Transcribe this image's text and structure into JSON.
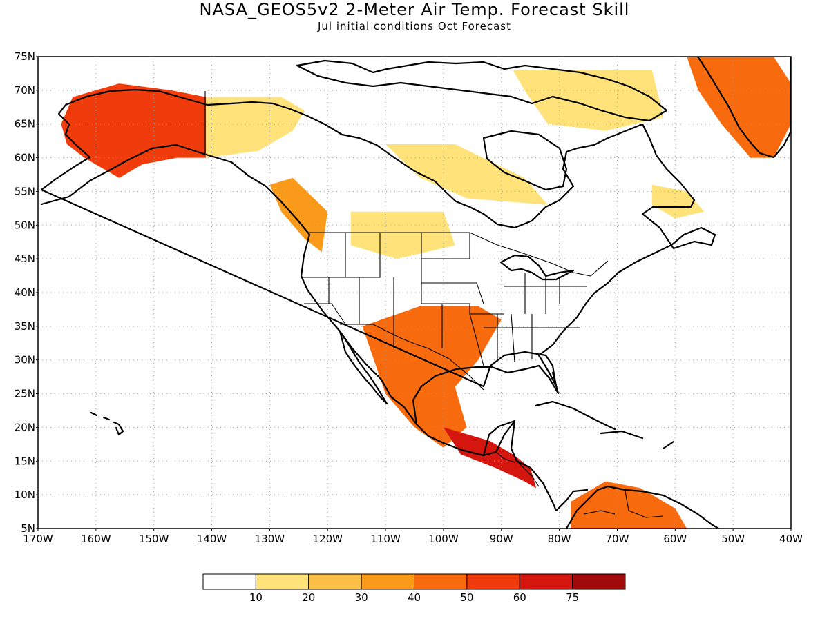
{
  "title": "NASA_GEOS5v2 2-Meter Air Temp. Forecast Skill",
  "subtitle": "Jul initial conditions  Oct Forecast",
  "map": {
    "lat_range": [
      5,
      75
    ],
    "lon_range": [
      -170,
      -40
    ],
    "lat_ticks": [
      "5N",
      "10N",
      "15N",
      "20N",
      "25N",
      "30N",
      "35N",
      "40N",
      "45N",
      "50N",
      "55N",
      "60N",
      "65N",
      "70N",
      "75N"
    ],
    "lon_ticks": [
      "170W",
      "160W",
      "150W",
      "140W",
      "130W",
      "120W",
      "110W",
      "100W",
      "90W",
      "80W",
      "70W",
      "60W",
      "50W",
      "40W"
    ],
    "gridlines": "dotted"
  },
  "colorbar": {
    "labels": [
      "10",
      "20",
      "30",
      "40",
      "50",
      "60",
      "75"
    ],
    "colors": [
      "#ffffff",
      "#ffe27a",
      "#fcbf47",
      "#fa9a1a",
      "#f76a0e",
      "#f03c0c",
      "#d5160e",
      "#a00a0a"
    ]
  },
  "regions": [
    {
      "name": "alaska",
      "level": 5,
      "coords": [
        [
          -164,
          69
        ],
        [
          -156,
          71
        ],
        [
          -147,
          70
        ],
        [
          -141,
          69
        ],
        [
          -141,
          60
        ],
        [
          -146,
          60
        ],
        [
          -152,
          59
        ],
        [
          -156,
          57
        ],
        [
          -162,
          60
        ],
        [
          -165,
          62
        ],
        [
          -166,
          65
        ]
      ]
    },
    {
      "name": "yukon",
      "level": 1,
      "coords": [
        [
          -141,
          69
        ],
        [
          -128,
          69
        ],
        [
          -124,
          67
        ],
        [
          -126,
          64
        ],
        [
          -132,
          61
        ],
        [
          -141,
          60
        ]
      ]
    },
    {
      "name": "greenland",
      "level": 4,
      "coords": [
        [
          -58,
          75
        ],
        [
          -43,
          75
        ],
        [
          -40,
          71
        ],
        [
          -40,
          65
        ],
        [
          -43,
          60
        ],
        [
          -47,
          60
        ],
        [
          -52,
          65
        ],
        [
          -56,
          70
        ]
      ]
    },
    {
      "name": "canada-arctic",
      "level": 1,
      "coords": [
        [
          -88,
          73
        ],
        [
          -64,
          73
        ],
        [
          -62,
          66
        ],
        [
          -72,
          64
        ],
        [
          -82,
          65
        ],
        [
          -86,
          70
        ]
      ]
    },
    {
      "name": "hudson-west",
      "level": 1,
      "coords": [
        [
          -110,
          62
        ],
        [
          -98,
          62
        ],
        [
          -86,
          57
        ],
        [
          -82,
          53
        ],
        [
          -96,
          54
        ],
        [
          -104,
          57
        ]
      ]
    },
    {
      "name": "bc-coast",
      "level": 3,
      "coords": [
        [
          -130,
          56
        ],
        [
          -126,
          57
        ],
        [
          -120,
          52
        ],
        [
          -121,
          46
        ],
        [
          -124,
          48
        ],
        [
          -128,
          52
        ]
      ]
    },
    {
      "name": "plains-north",
      "level": 1,
      "coords": [
        [
          -116,
          52
        ],
        [
          -100,
          52
        ],
        [
          -98,
          47
        ],
        [
          -108,
          45
        ],
        [
          -116,
          47
        ]
      ]
    },
    {
      "name": "texas-mexico",
      "level": 4,
      "coords": [
        [
          -114,
          35
        ],
        [
          -104,
          38
        ],
        [
          -94,
          38
        ],
        [
          -90,
          36
        ],
        [
          -94,
          30
        ],
        [
          -98,
          26
        ],
        [
          -96,
          20
        ],
        [
          -100,
          17
        ],
        [
          -105,
          20
        ],
        [
          -110,
          25
        ],
        [
          -112,
          30
        ]
      ]
    },
    {
      "name": "central-america",
      "level": 6,
      "coords": [
        [
          -100,
          20
        ],
        [
          -92,
          18
        ],
        [
          -88,
          16
        ],
        [
          -85,
          14
        ],
        [
          -84,
          11
        ],
        [
          -86,
          12
        ],
        [
          -91,
          14
        ],
        [
          -97,
          16
        ]
      ]
    },
    {
      "name": "labrador",
      "level": 1,
      "coords": [
        [
          -64,
          56
        ],
        [
          -58,
          55
        ],
        [
          -55,
          52
        ],
        [
          -60,
          51
        ],
        [
          -64,
          53
        ]
      ]
    },
    {
      "name": "south-america",
      "level": 4,
      "coords": [
        [
          -78,
          9
        ],
        [
          -72,
          12
        ],
        [
          -66,
          11
        ],
        [
          -60,
          8
        ],
        [
          -58,
          5
        ],
        [
          -78,
          5
        ]
      ]
    }
  ]
}
